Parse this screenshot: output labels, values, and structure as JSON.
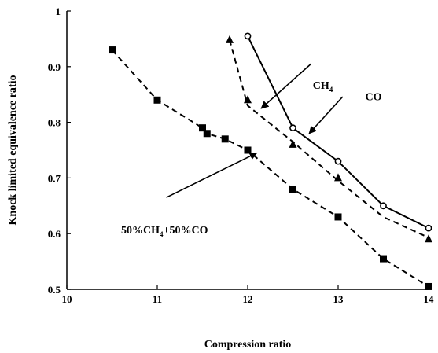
{
  "chart_data": {
    "type": "line",
    "title": "",
    "xlabel": "Compression ratio",
    "ylabel": "Knock limited equivalence ratio",
    "xlim": [
      10,
      14
    ],
    "ylim": [
      0.5,
      1
    ],
    "x_ticks": [
      10,
      11,
      12,
      13,
      14
    ],
    "x_tick_labels": [
      "10",
      "11",
      "12",
      "13",
      "14"
    ],
    "y_ticks": [
      0.5,
      0.6,
      0.7,
      0.8,
      0.9,
      1
    ],
    "y_tick_labels": [
      "0.5",
      "0.6",
      "0.7",
      "0.8",
      "0.9",
      "1"
    ],
    "grid": false,
    "series": [
      {
        "name": "CO",
        "line_style": "solid",
        "marker": "open-circle",
        "x": [
          12.0,
          12.5,
          13.0,
          13.5,
          14.0
        ],
        "y": [
          0.955,
          0.79,
          0.73,
          0.65,
          0.61
        ]
      },
      {
        "name": "CH4",
        "line_style": "dashed",
        "marker": "filled-triangle",
        "x": [
          11.8,
          12.0,
          12.5,
          13.0,
          14.0
        ],
        "y": [
          0.948,
          0.84,
          0.76,
          0.7,
          0.59
        ],
        "fit_x": [
          11.8,
          12.0,
          12.5,
          13.0,
          13.5,
          14.0
        ],
        "fit_y": [
          0.948,
          0.83,
          0.765,
          0.695,
          0.63,
          0.593
        ]
      },
      {
        "name": "50%CH4+50%CO",
        "line_style": "dashed",
        "marker": "filled-square",
        "x": [
          10.5,
          11.0,
          11.5,
          11.55,
          11.75,
          12.0,
          12.5,
          13.0,
          13.5,
          14.0
        ],
        "y": [
          0.93,
          0.84,
          0.79,
          0.78,
          0.77,
          0.75,
          0.68,
          0.63,
          0.555,
          0.505
        ]
      }
    ],
    "annotations": [
      {
        "text": "CH",
        "sub": "4",
        "series": "CH4",
        "text_at": [
          12.72,
          0.86
        ],
        "arrow_from": [
          12.7,
          0.905
        ],
        "arrow_to": [
          12.15,
          0.825
        ]
      },
      {
        "text": "CO",
        "sub": "",
        "series": "CO",
        "text_at": [
          13.3,
          0.84
        ],
        "arrow_from": [
          13.05,
          0.846
        ],
        "arrow_to": [
          12.68,
          0.78
        ]
      },
      {
        "text": "50%CH",
        "sub": "4",
        "tail": "+50%CO",
        "series": "50%CH4+50%CO",
        "text_at": [
          10.6,
          0.6
        ],
        "arrow_from": [
          11.1,
          0.665
        ],
        "arrow_to": [
          12.1,
          0.745
        ]
      }
    ]
  }
}
